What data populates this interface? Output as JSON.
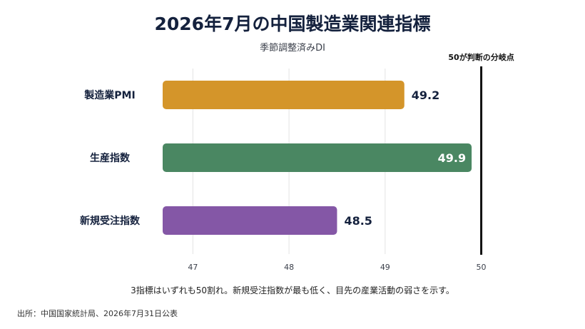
{
  "title": "2026年7月の中国製造業関連指標",
  "subtitle": "季節調整済みDI",
  "note": "3指標はいずれも50割れ。新規受注指数が最も低く、目先の産業活動の弱さを示す。",
  "source": "出所：中国国家統計局、2026年7月31日公表",
  "chart_data": {
    "type": "bar",
    "orientation": "horizontal",
    "title": "2026年7月の中国製造業関連指標",
    "subtitle": "季節調整済みDI",
    "categories": [
      "製造業PMI",
      "生産指数",
      "新規受注指数"
    ],
    "values": [
      49.2,
      49.9,
      48.5
    ],
    "value_labels": [
      "49.2",
      "49.9",
      "48.5"
    ],
    "colors": [
      "#D4952A",
      "#4A8762",
      "#8457A6"
    ],
    "xlim": [
      46.5,
      50.2
    ],
    "xticks": [
      47,
      48,
      49,
      50
    ],
    "xtick_labels": [
      "47",
      "48",
      "49",
      "50"
    ],
    "grid": "vertical",
    "threshold": {
      "value": 50,
      "label": "50が判断の分岐点",
      "color": "#111111"
    }
  }
}
